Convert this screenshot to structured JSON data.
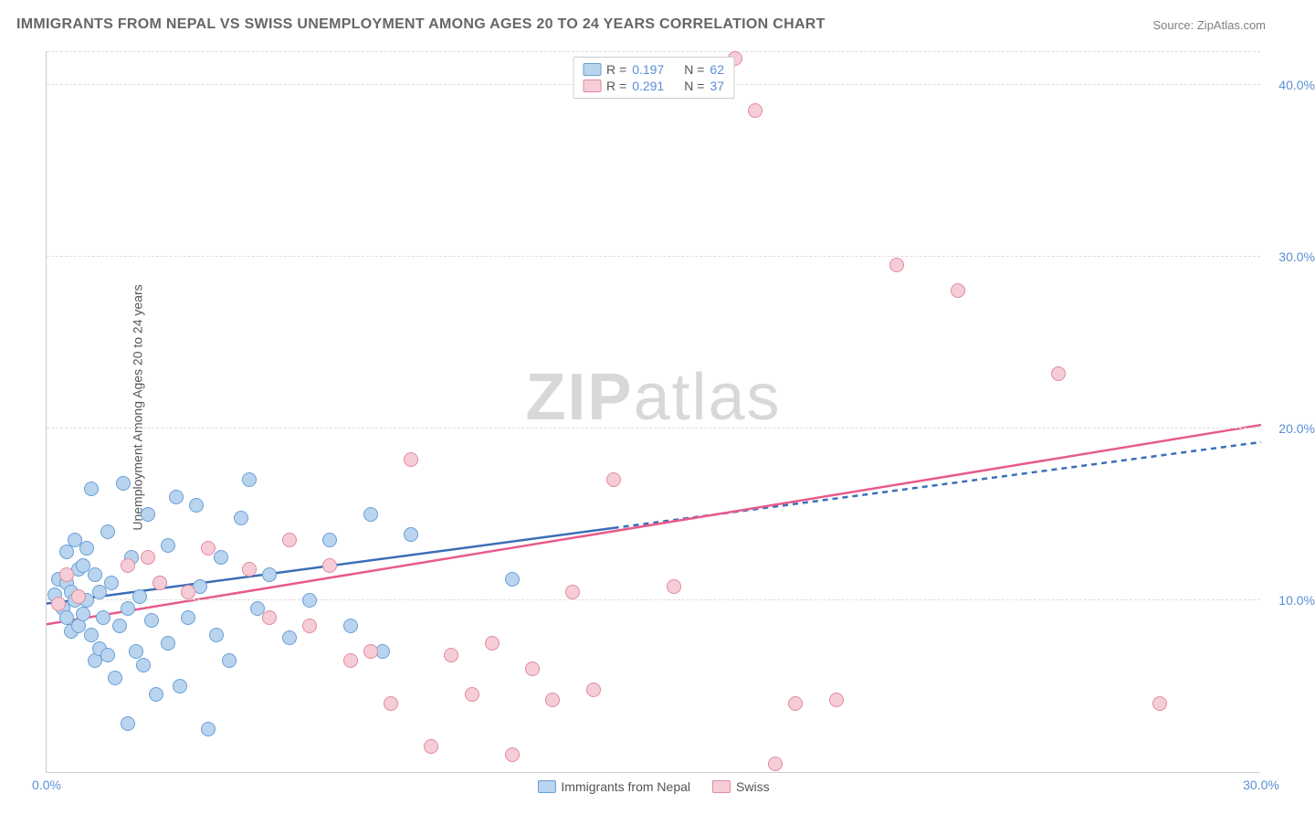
{
  "title": "IMMIGRANTS FROM NEPAL VS SWISS UNEMPLOYMENT AMONG AGES 20 TO 24 YEARS CORRELATION CHART",
  "source": "Source: ZipAtlas.com",
  "watermark_bold": "ZIP",
  "watermark_light": "atlas",
  "chart": {
    "type": "scatter",
    "y_axis_title": "Unemployment Among Ages 20 to 24 years",
    "xlim": [
      0,
      30
    ],
    "ylim": [
      0,
      42
    ],
    "x_ticks": [
      {
        "v": 0,
        "label": "0.0%"
      },
      {
        "v": 30,
        "label": "30.0%"
      }
    ],
    "y_ticks": [
      {
        "v": 10,
        "label": "10.0%"
      },
      {
        "v": 20,
        "label": "20.0%"
      },
      {
        "v": 30,
        "label": "30.0%"
      },
      {
        "v": 40,
        "label": "40.0%"
      }
    ],
    "grid_color": "#dddddd",
    "background_color": "#ffffff",
    "point_radius": 8,
    "series": [
      {
        "name": "Immigrants from Nepal",
        "key": "nepal",
        "R": "0.197",
        "N": "62",
        "fill": "#b9d4ee",
        "stroke": "#6a9fd6",
        "line_color": "#3a6fb7",
        "trend": {
          "x1": 0,
          "y1": 9.8,
          "x2": 14,
          "y2": 14.2,
          "x2_dash": 30,
          "y2_dash": 19.2
        },
        "points": [
          [
            0.2,
            10.3
          ],
          [
            0.3,
            11.2
          ],
          [
            0.4,
            9.5
          ],
          [
            0.5,
            12.8
          ],
          [
            0.5,
            9.0
          ],
          [
            0.5,
            11.0
          ],
          [
            0.6,
            10.5
          ],
          [
            0.6,
            8.2
          ],
          [
            0.7,
            13.5
          ],
          [
            0.7,
            10.0
          ],
          [
            0.8,
            11.8
          ],
          [
            0.8,
            8.5
          ],
          [
            0.9,
            9.2
          ],
          [
            0.9,
            12.0
          ],
          [
            1.0,
            10.0
          ],
          [
            1.0,
            13.0
          ],
          [
            1.1,
            16.5
          ],
          [
            1.1,
            8.0
          ],
          [
            1.2,
            11.5
          ],
          [
            1.2,
            6.5
          ],
          [
            1.3,
            10.5
          ],
          [
            1.3,
            7.2
          ],
          [
            1.4,
            9.0
          ],
          [
            1.5,
            14.0
          ],
          [
            1.5,
            6.8
          ],
          [
            1.6,
            11.0
          ],
          [
            1.7,
            5.5
          ],
          [
            1.8,
            8.5
          ],
          [
            1.9,
            16.8
          ],
          [
            2.0,
            9.5
          ],
          [
            2.0,
            2.8
          ],
          [
            2.1,
            12.5
          ],
          [
            2.2,
            7.0
          ],
          [
            2.3,
            10.2
          ],
          [
            2.4,
            6.2
          ],
          [
            2.5,
            15.0
          ],
          [
            2.6,
            8.8
          ],
          [
            2.7,
            4.5
          ],
          [
            2.8,
            11.0
          ],
          [
            3.0,
            13.2
          ],
          [
            3.0,
            7.5
          ],
          [
            3.2,
            16.0
          ],
          [
            3.3,
            5.0
          ],
          [
            3.5,
            9.0
          ],
          [
            3.7,
            15.5
          ],
          [
            3.8,
            10.8
          ],
          [
            4.0,
            2.5
          ],
          [
            4.2,
            8.0
          ],
          [
            4.3,
            12.5
          ],
          [
            4.5,
            6.5
          ],
          [
            4.8,
            14.8
          ],
          [
            5.0,
            17.0
          ],
          [
            5.2,
            9.5
          ],
          [
            5.5,
            11.5
          ],
          [
            6.0,
            7.8
          ],
          [
            6.5,
            10.0
          ],
          [
            7.0,
            13.5
          ],
          [
            7.5,
            8.5
          ],
          [
            8.0,
            15.0
          ],
          [
            8.3,
            7.0
          ],
          [
            9.0,
            13.8
          ],
          [
            11.5,
            11.2
          ]
        ]
      },
      {
        "name": "Swiss",
        "key": "swiss",
        "R": "0.291",
        "N": "37",
        "fill": "#f6cdd6",
        "stroke": "#e18a9f",
        "line_color": "#e85a8a",
        "trend": {
          "x1": 0,
          "y1": 8.6,
          "x2": 30,
          "y2": 20.2
        },
        "points": [
          [
            0.3,
            9.8
          ],
          [
            0.5,
            11.5
          ],
          [
            0.8,
            10.2
          ],
          [
            2.0,
            12.0
          ],
          [
            2.5,
            12.5
          ],
          [
            2.8,
            11.0
          ],
          [
            3.5,
            10.5
          ],
          [
            4.0,
            13.0
          ],
          [
            5.0,
            11.8
          ],
          [
            5.5,
            9.0
          ],
          [
            6.0,
            13.5
          ],
          [
            6.5,
            8.5
          ],
          [
            7.0,
            12.0
          ],
          [
            7.5,
            6.5
          ],
          [
            8.0,
            7.0
          ],
          [
            8.5,
            4.0
          ],
          [
            9.0,
            18.2
          ],
          [
            9.5,
            1.5
          ],
          [
            10.0,
            6.8
          ],
          [
            10.5,
            4.5
          ],
          [
            11.0,
            7.5
          ],
          [
            11.5,
            1.0
          ],
          [
            12.0,
            6.0
          ],
          [
            12.5,
            4.2
          ],
          [
            13.0,
            10.5
          ],
          [
            13.5,
            4.8
          ],
          [
            14.0,
            17.0
          ],
          [
            15.5,
            10.8
          ],
          [
            17.0,
            41.5
          ],
          [
            17.5,
            38.5
          ],
          [
            18.0,
            0.5
          ],
          [
            18.5,
            4.0
          ],
          [
            19.5,
            4.2
          ],
          [
            21.0,
            29.5
          ],
          [
            22.5,
            28.0
          ],
          [
            25.0,
            23.2
          ],
          [
            27.5,
            4.0
          ]
        ]
      }
    ],
    "legend_top": {
      "rows": [
        {
          "swatch": "nepal",
          "r_label": "R =",
          "r_val": "0.197",
          "n_label": "N =",
          "n_val": "62"
        },
        {
          "swatch": "swiss",
          "r_label": "R =",
          "r_val": "0.291",
          "n_label": "N =",
          "n_val": "37"
        }
      ]
    },
    "legend_bottom": [
      {
        "swatch": "nepal",
        "label": "Immigrants from Nepal"
      },
      {
        "swatch": "swiss",
        "label": "Swiss"
      }
    ]
  }
}
